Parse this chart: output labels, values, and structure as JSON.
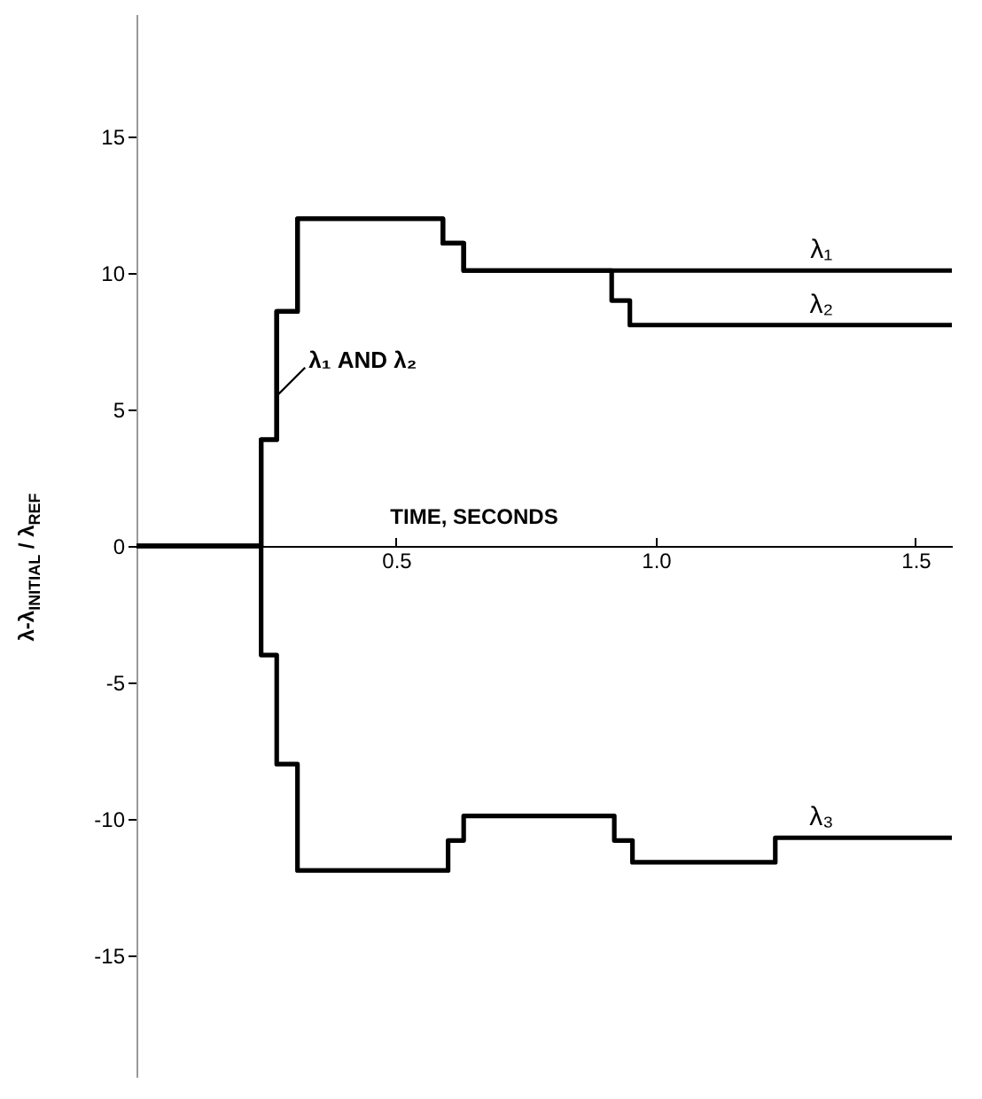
{
  "chart_data": {
    "type": "step",
    "xlabel": "TIME, SECONDS",
    "ylabel": "λ-λ$_{INITIAL}$ / λ$_{REF}$",
    "xlim": [
      0,
      1.57
    ],
    "ylim": [
      -19.5,
      19.5
    ],
    "xticks": [
      0.5,
      {
        "value": 1,
        "label": "1.0"
      },
      1.5
    ],
    "yticks": [
      -15,
      -10,
      -5,
      0,
      5,
      10,
      15
    ],
    "grid": false,
    "legend": false,
    "marker": "none",
    "line_style": "solid",
    "series": [
      {
        "name": "λ₁",
        "color": "#000000",
        "x": [
          0,
          0.24,
          0.27,
          0.31,
          0.59,
          0.63,
          1.57
        ],
        "values": [
          0,
          3.9,
          8.6,
          12.0,
          11.1,
          10.1,
          10.1
        ]
      },
      {
        "name": "λ₂",
        "color": "#000000",
        "x": [
          0,
          0.24,
          0.27,
          0.31,
          0.59,
          0.63,
          0.915,
          0.95,
          1.57
        ],
        "values": [
          0,
          3.9,
          8.6,
          12.0,
          11.1,
          10.1,
          9.0,
          8.1,
          8.1
        ]
      },
      {
        "name": "λ₃",
        "color": "#000000",
        "x": [
          0,
          0.24,
          0.27,
          0.31,
          0.6,
          0.63,
          0.92,
          0.955,
          1.23,
          1.57
        ],
        "values": [
          0,
          -4.0,
          -8.0,
          -11.9,
          -10.8,
          -9.9,
          -10.8,
          -11.6,
          -10.7,
          -10.7
        ]
      }
    ],
    "annotations": [
      {
        "text": "λ₁ AND λ₂",
        "x": 0.27,
        "y": 5.5
      }
    ]
  }
}
